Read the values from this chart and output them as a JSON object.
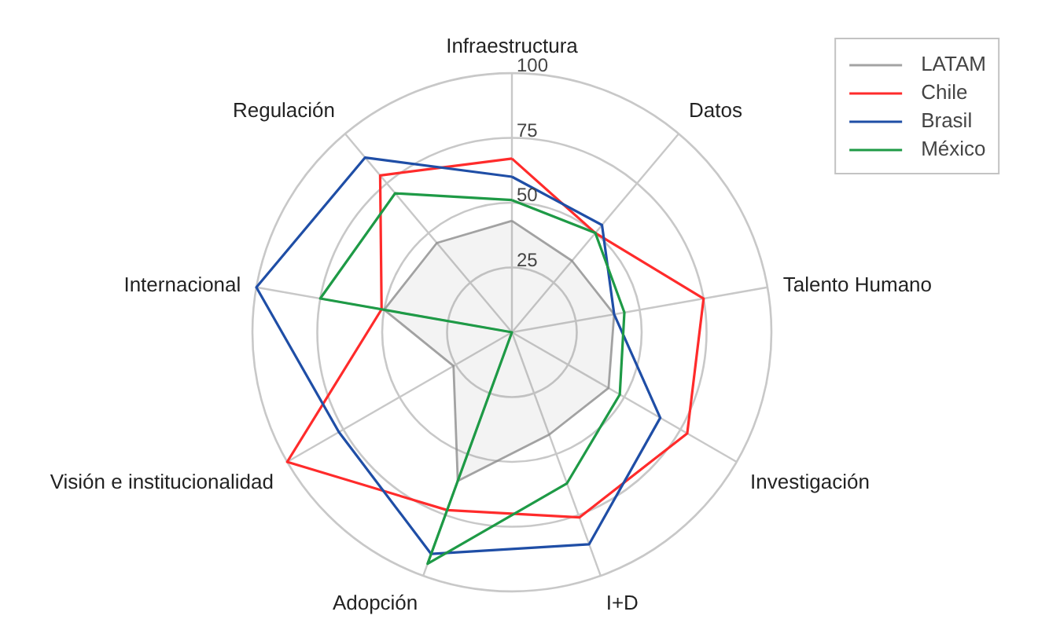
{
  "chart_data": {
    "type": "radar",
    "categories": [
      "Infraestructura",
      "Datos",
      "Talento Humano",
      "Investigación",
      "I+D",
      "Adopción",
      "Visión e institucionalidad",
      "Internacional",
      "Regulación"
    ],
    "ylim": [
      0,
      100
    ],
    "yticks": [
      25,
      50,
      75,
      100
    ],
    "grid": true,
    "legend": "top right",
    "series": [
      {
        "name": "LATAM",
        "type": "area",
        "color": "#8c8c8c",
        "values": [
          43,
          36,
          40,
          43,
          42,
          61,
          26,
          50,
          45
        ]
      },
      {
        "name": "Chile",
        "color": "#ff2b2b",
        "values": [
          67,
          50,
          75,
          78,
          76,
          73,
          100,
          51,
          79
        ]
      },
      {
        "name": "Brasil",
        "color": "#1f4ea6",
        "values": [
          60,
          54,
          40,
          66,
          87,
          91,
          77,
          100,
          88
        ]
      },
      {
        "name": "México",
        "color": "#1e9a46",
        "values": [
          51,
          50,
          44,
          48,
          62,
          95,
          0,
          75,
          70
        ]
      }
    ]
  }
}
